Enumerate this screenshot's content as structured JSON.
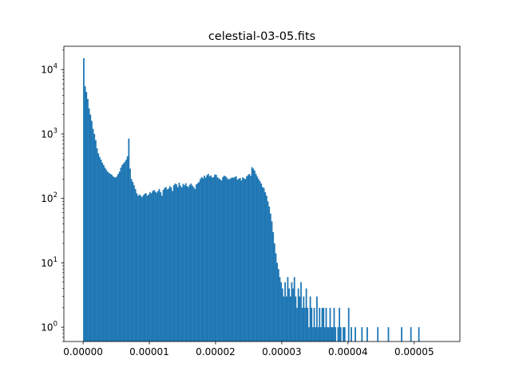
{
  "chart_data": {
    "type": "bar",
    "title": "celestial-03-05.fits",
    "xlabel": "",
    "ylabel": "",
    "yscale": "log",
    "grid": false,
    "bar_color": "#1f77b4",
    "xlim": [
      -2.9e-06,
      5.69e-05
    ],
    "ylim": [
      0.6,
      23000
    ],
    "x_ticks": [
      {
        "value": 0.0,
        "label": "0.00000"
      },
      {
        "value": 1e-05,
        "label": "0.00001"
      },
      {
        "value": 2e-05,
        "label": "0.00002"
      },
      {
        "value": 3e-05,
        "label": "0.00003"
      },
      {
        "value": 4e-05,
        "label": "0.00004"
      },
      {
        "value": 5e-05,
        "label": "0.00005"
      }
    ],
    "y_ticks": [
      {
        "value": 1,
        "base": "10",
        "exp": "0"
      },
      {
        "value": 10,
        "base": "10",
        "exp": "1"
      },
      {
        "value": 100,
        "base": "10",
        "exp": "2"
      },
      {
        "value": 1000,
        "base": "10",
        "exp": "3"
      },
      {
        "value": 10000,
        "base": "10",
        "exp": "4"
      }
    ],
    "bin_start": 0.0,
    "bin_width": 2e-07,
    "counts": [
      15000,
      5500,
      4500,
      3500,
      2500,
      2000,
      1600,
      1200,
      1000,
      800,
      600,
      500,
      440,
      400,
      360,
      330,
      300,
      280,
      260,
      250,
      240,
      235,
      220,
      215,
      210,
      220,
      240,
      260,
      300,
      330,
      350,
      370,
      400,
      450,
      850,
      290,
      200,
      180,
      160,
      140,
      120,
      110,
      115,
      110,
      105,
      112,
      118,
      120,
      110,
      115,
      125,
      120,
      130,
      135,
      128,
      122,
      130,
      140,
      125,
      110,
      135,
      145,
      150,
      138,
      142,
      155,
      148,
      130,
      160,
      170,
      165,
      150,
      175,
      158,
      148,
      168,
      160,
      172,
      155,
      150,
      162,
      170,
      158,
      150,
      140,
      165,
      172,
      180,
      200,
      215,
      205,
      225,
      210,
      230,
      240,
      220,
      228,
      210,
      215,
      235,
      232,
      212,
      205,
      198,
      190,
      215,
      225,
      220,
      210,
      198,
      200,
      205,
      212,
      208,
      215,
      220,
      195,
      202,
      208,
      190,
      212,
      205,
      200,
      220,
      230,
      240,
      225,
      305,
      290,
      270,
      240,
      218,
      200,
      185,
      170,
      150,
      145,
      125,
      110,
      90,
      75,
      58,
      44,
      30,
      20,
      14,
      10,
      8,
      6,
      5,
      4,
      3,
      5,
      3,
      6,
      4,
      3,
      5,
      4,
      6,
      3,
      2,
      4,
      3,
      5,
      2,
      3,
      2,
      4,
      2,
      1,
      3,
      2,
      1,
      2,
      1,
      3,
      1,
      2,
      1,
      2,
      2,
      1,
      2,
      1,
      1,
      2,
      1,
      1,
      2,
      1,
      0,
      1,
      2,
      1,
      0,
      1,
      1,
      0,
      0,
      2,
      0,
      1,
      0,
      0,
      1,
      0,
      0,
      0,
      0,
      1,
      0,
      0,
      0,
      1,
      0,
      0,
      0,
      0,
      0,
      0,
      0,
      1,
      0,
      0,
      0,
      0,
      0,
      0,
      0,
      1,
      0,
      0,
      0,
      0,
      0,
      0,
      0,
      0,
      0,
      1,
      0,
      0,
      0,
      0,
      0,
      0,
      1,
      0,
      0,
      0,
      0,
      0,
      1
    ]
  }
}
